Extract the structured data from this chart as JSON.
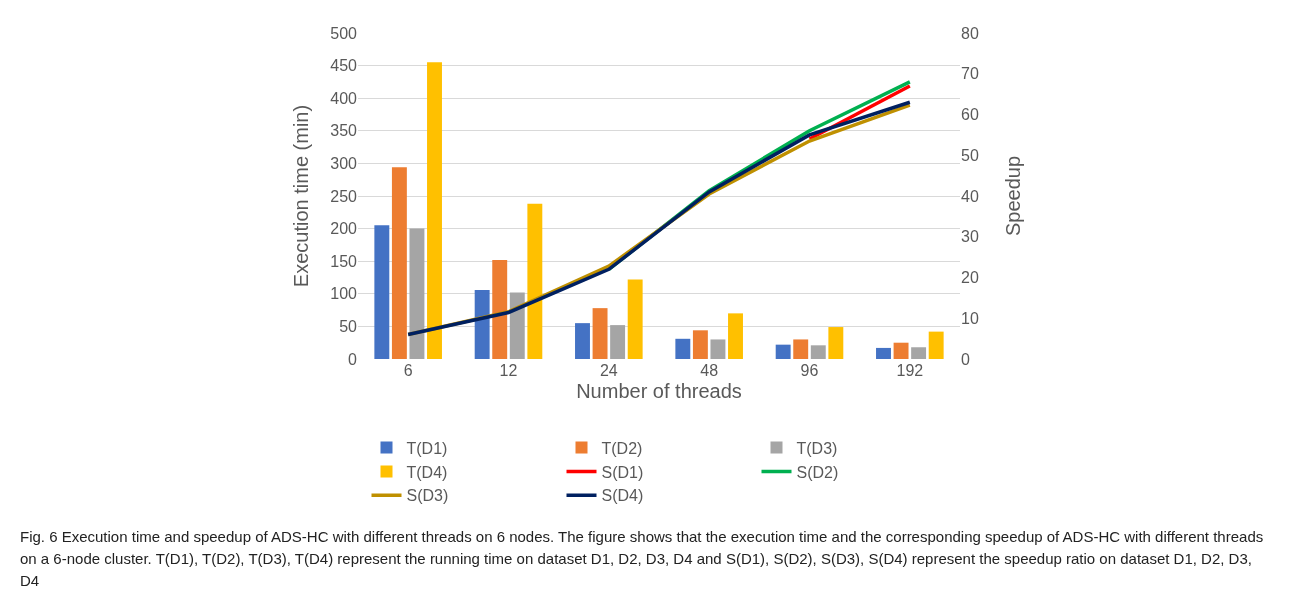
{
  "chart_data": {
    "type": "bar",
    "xlabel": "Number of threads",
    "ylabel": "Execution time (min)",
    "y2label": "Speedup",
    "categories": [
      "6",
      "12",
      "24",
      "48",
      "96",
      "192"
    ],
    "series": [
      {
        "name": "T(D1)",
        "color": "#4472c4",
        "values": [
          205,
          106,
          55,
          31,
          22,
          17
        ]
      },
      {
        "name": "T(D2)",
        "color": "#ed7d31",
        "values": [
          294,
          152,
          78,
          44,
          30,
          25
        ]
      },
      {
        "name": "T(D3)",
        "color": "#a5a5a5",
        "values": [
          200,
          102,
          52,
          30,
          21,
          18
        ]
      },
      {
        "name": "T(D4)",
        "color": "#ffc000",
        "values": [
          455,
          238,
          122,
          70,
          49,
          42
        ]
      },
      {
        "name": "S(D1)",
        "type": "line",
        "axis": "y2",
        "color": "#ff0000",
        "values": [
          null,
          null,
          null,
          null,
          54,
          67
        ]
      },
      {
        "name": "S(D2)",
        "type": "line",
        "axis": "y2",
        "color": "#00b050",
        "values": [
          null,
          null,
          22,
          41.3,
          56,
          68
        ]
      },
      {
        "name": "S(D3)",
        "type": "line",
        "axis": "y2",
        "color": "#bf9000",
        "values": [
          6,
          11.6,
          22.8,
          40.5,
          53.5,
          62.3
        ]
      },
      {
        "name": "S(D4)",
        "type": "line",
        "axis": "y2",
        "color": "#002060",
        "values": [
          6,
          11.4,
          22,
          41,
          55,
          63
        ]
      }
    ],
    "ylim": [
      0,
      500
    ],
    "yticks": [
      0,
      50,
      100,
      150,
      200,
      250,
      300,
      350,
      400,
      450,
      500
    ],
    "y2lim": [
      0,
      80
    ],
    "y2ticks": [
      0,
      10,
      20,
      30,
      40,
      50,
      60,
      70,
      80
    ],
    "grid": "y",
    "legend": "bottom",
    "marker": "none",
    "line_style": "solid",
    "annotations": [
      "Fig. 6 Execution time and speedup of ADS-HC with different threads on 6 nodes. The figure shows that the execution time and the corresponding speedup of ADS-HC with different threads on a 6-node cluster. T(D1), T(D2), T(D3), T(D4) represent the running time on dataset D1, D2, D3, D4 and S(D1), S(D2), S(D3), S(D4) represent the speedup ratio on dataset D1, D2, D3, D4"
    ]
  }
}
